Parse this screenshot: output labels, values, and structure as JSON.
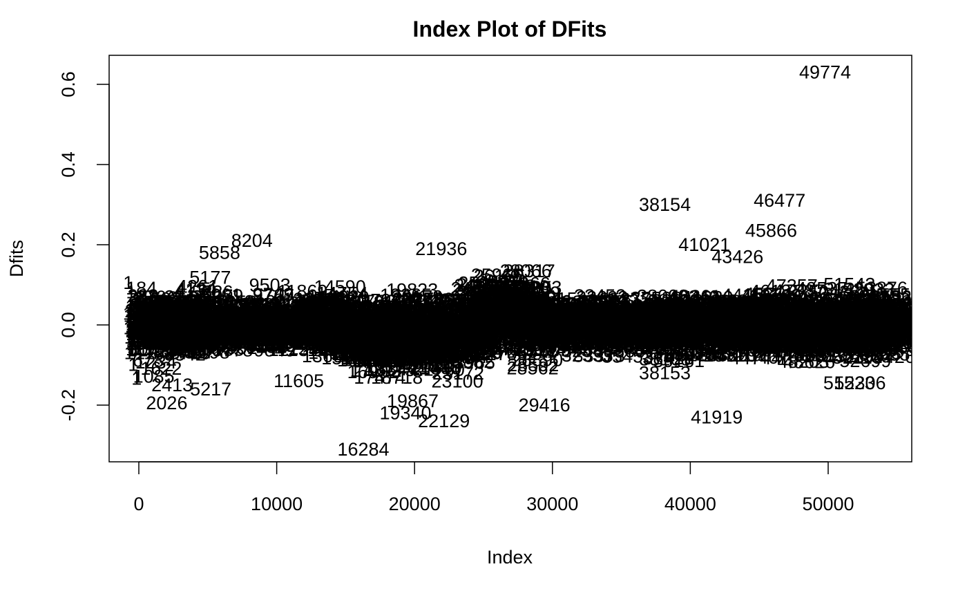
{
  "chart_data": {
    "type": "scatter",
    "title": "Index Plot of DFits",
    "xlabel": "Index",
    "ylabel": "Dfits",
    "xlim": [
      -1200,
      56000
    ],
    "ylim": [
      -0.34,
      0.67
    ],
    "x_ticks": [
      0,
      10000,
      20000,
      30000,
      40000,
      50000
    ],
    "x_tick_labels": [
      "0",
      "10000",
      "20000",
      "30000",
      "40000",
      "50000"
    ],
    "y_ticks": [
      -0.2,
      0.0,
      0.2,
      0.4,
      0.6
    ],
    "y_tick_labels": [
      "-0.2",
      "0.0",
      "0.2",
      "0.4",
      "0.6"
    ],
    "grid": false,
    "legend": "none",
    "marker": "point index labels",
    "color": "#000000",
    "labeled_points": [
      {
        "label": "49774",
        "x": 49774,
        "y": 0.63
      },
      {
        "label": "46477",
        "x": 46477,
        "y": 0.31
      },
      {
        "label": "38154",
        "x": 38154,
        "y": 0.3
      },
      {
        "label": "45866",
        "x": 45866,
        "y": 0.235
      },
      {
        "label": "41021",
        "x": 41021,
        "y": 0.2
      },
      {
        "label": "8204",
        "x": 8204,
        "y": 0.21
      },
      {
        "label": "21936",
        "x": 21936,
        "y": 0.19
      },
      {
        "label": "5858",
        "x": 5858,
        "y": 0.18
      },
      {
        "label": "43426",
        "x": 43426,
        "y": 0.17
      },
      {
        "label": "38153",
        "x": 38153,
        "y": -0.12
      },
      {
        "label": "11605",
        "x": 11605,
        "y": -0.14
      },
      {
        "label": "2413",
        "x": 2413,
        "y": -0.15
      },
      {
        "label": "5217",
        "x": 5217,
        "y": -0.16
      },
      {
        "label": "51523",
        "x": 51523,
        "y": -0.145
      },
      {
        "label": "52306",
        "x": 52306,
        "y": -0.145
      },
      {
        "label": "2026",
        "x": 2026,
        "y": -0.195
      },
      {
        "label": "29416",
        "x": 29416,
        "y": -0.2
      },
      {
        "label": "19867",
        "x": 19867,
        "y": -0.19
      },
      {
        "label": "19340",
        "x": 19340,
        "y": -0.22
      },
      {
        "label": "22129",
        "x": 22129,
        "y": -0.24
      },
      {
        "label": "41919",
        "x": 41919,
        "y": -0.23
      },
      {
        "label": "16284",
        "x": 16284,
        "y": -0.31
      }
    ]
  }
}
